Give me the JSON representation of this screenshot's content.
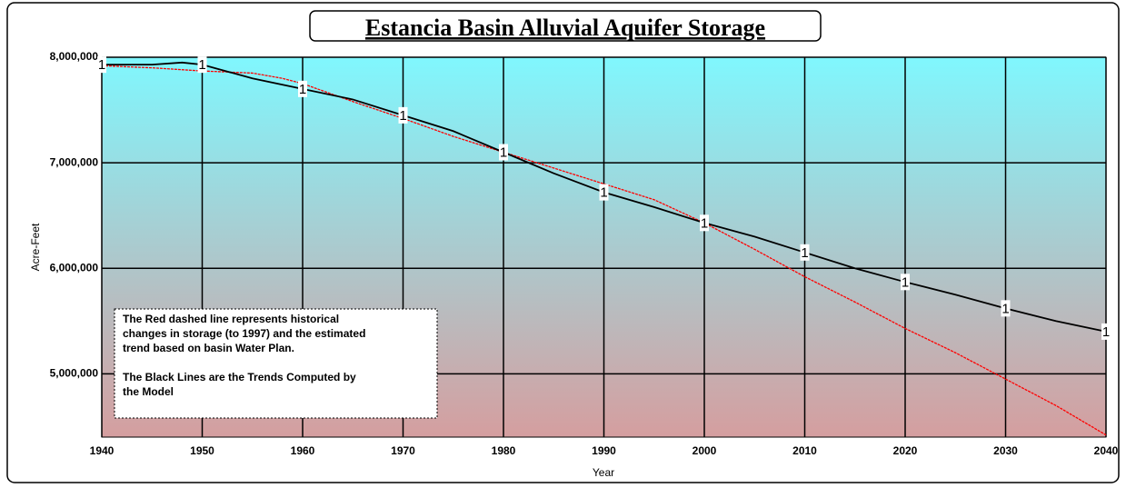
{
  "chart_data": {
    "type": "line",
    "title": "Estancia Basin Alluvial Aquifer Storage",
    "x_label": "Year",
    "y_label": "Acre-Feet",
    "xlim": [
      1940,
      2040
    ],
    "xticks": [
      1940,
      1950,
      1960,
      1970,
      1980,
      1990,
      2000,
      2010,
      2020,
      2030,
      2040
    ],
    "ylim": [
      4400000,
      8000000
    ],
    "yticks": [
      {
        "value": 5000000,
        "label": "5,000,000"
      },
      {
        "value": 6000000,
        "label": "6,000,000"
      },
      {
        "value": 7000000,
        "label": "7,000,000"
      },
      {
        "value": 8000000,
        "label": "8,000,000"
      }
    ],
    "grid": true,
    "series": [
      {
        "color": "#000000",
        "marker_label": "1",
        "x": [
          1940,
          1945,
          1948,
          1950,
          1955,
          1960,
          1965,
          1970,
          1975,
          1980,
          1985,
          1990,
          1995,
          2000,
          2005,
          2010,
          2015,
          2020,
          2025,
          2030,
          2035,
          2040
        ],
        "values": [
          7930000,
          7930000,
          7950000,
          7930000,
          7800000,
          7700000,
          7600000,
          7450000,
          7300000,
          7100000,
          6900000,
          6720000,
          6580000,
          6430000,
          6300000,
          6150000,
          6000000,
          5870000,
          5750000,
          5620000,
          5500000,
          5400000
        ]
      },
      {
        "color": "#ff0000",
        "dashed": true,
        "x": [
          1940,
          1945,
          1950,
          1955,
          1958,
          1960,
          1965,
          1970,
          1975,
          1980,
          1985,
          1990,
          1995,
          2000,
          2005,
          2010,
          2015,
          2020,
          2025,
          2030,
          2035,
          2040
        ],
        "values": [
          7920000,
          7900000,
          7870000,
          7850000,
          7800000,
          7750000,
          7580000,
          7420000,
          7250000,
          7100000,
          6950000,
          6800000,
          6650000,
          6430000,
          6180000,
          5920000,
          5680000,
          5430000,
          5200000,
          4950000,
          4700000,
          4420000
        ]
      }
    ],
    "note": [
      "The Red dashed line represents historical",
      "changes in storage (to 1997) and the estimated",
      "trend based on basin Water Plan.",
      "",
      "The Black Lines are the Trends Computed by",
      "the Model"
    ]
  }
}
